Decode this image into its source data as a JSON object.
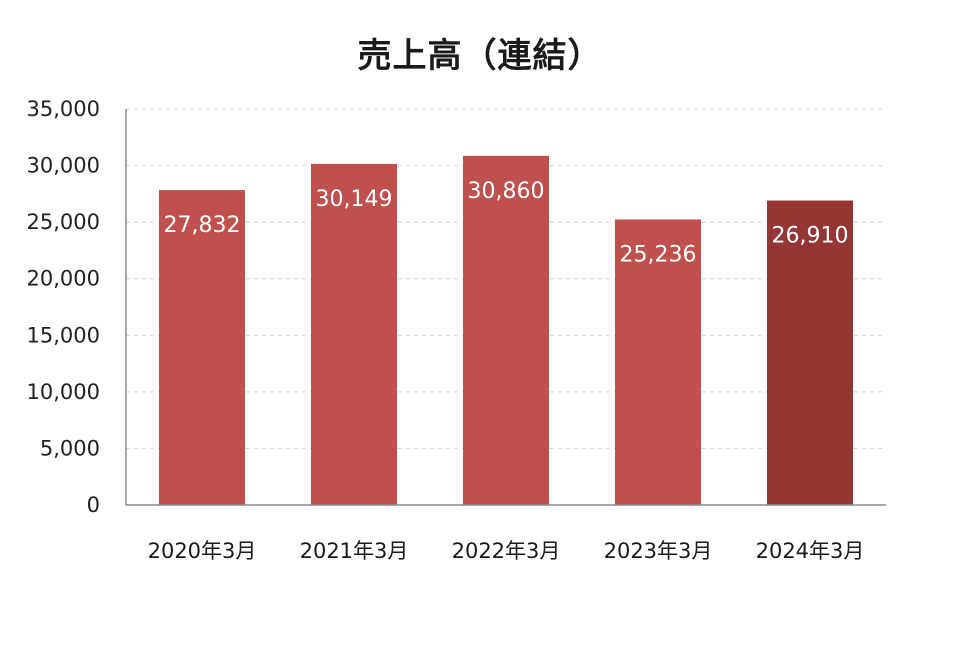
{
  "chart_data": {
    "type": "bar",
    "title": "売上高（連結）",
    "categories": [
      "2020年3月",
      "2021年3月",
      "2022年3月",
      "2023年3月",
      "2024年3月"
    ],
    "values": [
      27832,
      30149,
      30860,
      25236,
      26910
    ],
    "value_labels": [
      "27,832",
      "30,149",
      "30,860",
      "25,236",
      "26,910"
    ],
    "yticks": [
      0,
      5000,
      10000,
      15000,
      20000,
      25000,
      30000,
      35000
    ],
    "ytick_labels": [
      "0",
      "5,000",
      "10,000",
      "15,000",
      "20,000",
      "25,000",
      "30,000",
      "35,000"
    ],
    "ylim": [
      0,
      35000
    ],
    "xlabel": "",
    "ylabel": "",
    "grid": true,
    "colors": {
      "bar": "#c0504d",
      "highlight": "#943634"
    },
    "highlight_index": 4
  }
}
